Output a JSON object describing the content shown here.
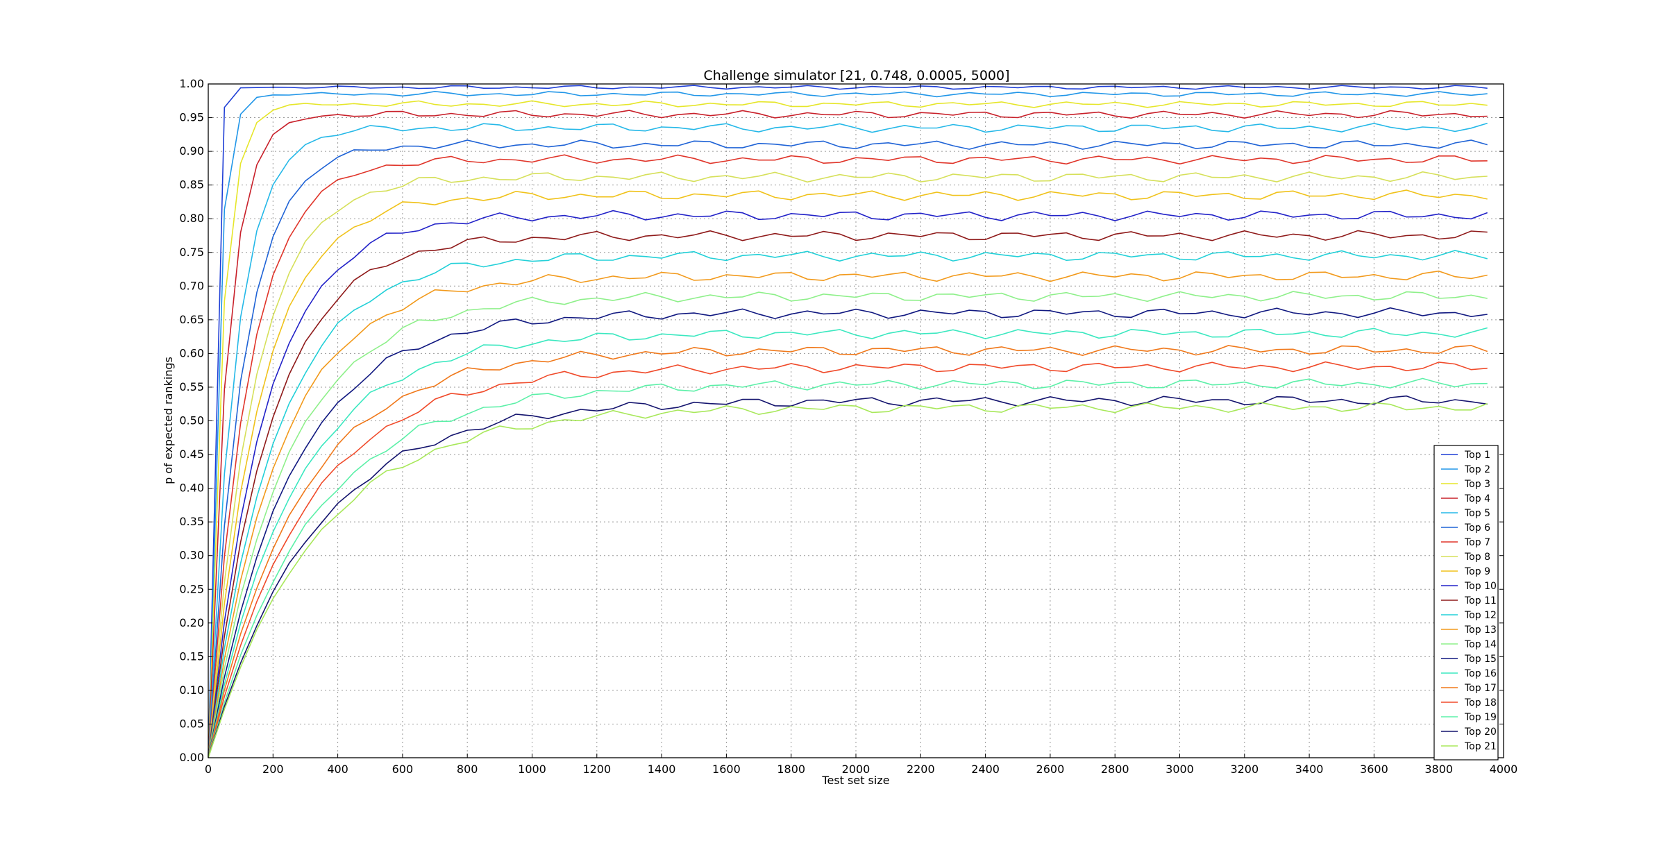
{
  "chart_data": {
    "type": "line",
    "title": "Challenge simulator [21, 0.748, 0.0005, 5000]",
    "xlabel": "Test set size",
    "ylabel": "p of expected rankings",
    "xlim": [
      0,
      4000
    ],
    "ylim": [
      0,
      1
    ],
    "x_ticks": [
      "0",
      "200",
      "400",
      "600",
      "800",
      "1000",
      "1200",
      "1400",
      "1600",
      "1800",
      "2000",
      "2200",
      "2400",
      "2600",
      "2800",
      "3000",
      "3200",
      "3400",
      "3600",
      "3800",
      "4000"
    ],
    "y_ticks": [
      "0.00",
      "0.05",
      "0.10",
      "0.15",
      "0.20",
      "0.25",
      "0.30",
      "0.35",
      "0.40",
      "0.45",
      "0.50",
      "0.55",
      "0.60",
      "0.65",
      "0.70",
      "0.75",
      "0.80",
      "0.85",
      "0.90",
      "0.95",
      "1.00"
    ],
    "grid": true,
    "legend_position": "lower-right",
    "x_start": 0,
    "x_step": 50,
    "x_count": 80,
    "series": [
      {
        "name": "Top 1",
        "color": "#1f3fd6",
        "plateau": 0.995,
        "k": 0.07,
        "noise": 0.003
      },
      {
        "name": "Top 2",
        "color": "#2196e8",
        "plateau": 0.985,
        "k": 0.035,
        "noise": 0.004
      },
      {
        "name": "Top 3",
        "color": "#e6e62a",
        "plateau": 0.97,
        "k": 0.024,
        "noise": 0.005
      },
      {
        "name": "Top 4",
        "color": "#c8202a",
        "plateau": 0.955,
        "k": 0.017,
        "noise": 0.006
      },
      {
        "name": "Top 5",
        "color": "#25b8e8",
        "plateau": 0.935,
        "k": 0.012,
        "noise": 0.007
      },
      {
        "name": "Top 6",
        "color": "#1f63d6",
        "plateau": 0.91,
        "k": 0.0095,
        "noise": 0.007
      },
      {
        "name": "Top 7",
        "color": "#e0352a",
        "plateau": 0.888,
        "k": 0.0082,
        "noise": 0.007
      },
      {
        "name": "Top 8",
        "color": "#d6e05a",
        "plateau": 0.862,
        "k": 0.0072,
        "noise": 0.008
      },
      {
        "name": "Top 9",
        "color": "#f0c21a",
        "plateau": 0.835,
        "k": 0.0064,
        "noise": 0.008
      },
      {
        "name": "Top 10",
        "color": "#2222c8",
        "plateau": 0.805,
        "k": 0.0058,
        "noise": 0.008
      },
      {
        "name": "Top 11",
        "color": "#8f1a1a",
        "plateau": 0.775,
        "k": 0.0053,
        "noise": 0.008
      },
      {
        "name": "Top 12",
        "color": "#22d0d8",
        "plateau": 0.745,
        "k": 0.0049,
        "noise": 0.008
      },
      {
        "name": "Top 13",
        "color": "#f29a1c",
        "plateau": 0.715,
        "k": 0.0046,
        "noise": 0.008
      },
      {
        "name": "Top 14",
        "color": "#8ef08a",
        "plateau": 0.685,
        "k": 0.0043,
        "noise": 0.008
      },
      {
        "name": "Top 15",
        "color": "#101880",
        "plateau": 0.66,
        "k": 0.004,
        "noise": 0.008
      },
      {
        "name": "Top 16",
        "color": "#3be8c0",
        "plateau": 0.63,
        "k": 0.0038,
        "noise": 0.008
      },
      {
        "name": "Top 17",
        "color": "#f0781a",
        "plateau": 0.605,
        "k": 0.0036,
        "noise": 0.008
      },
      {
        "name": "Top 18",
        "color": "#f04a2a",
        "plateau": 0.58,
        "k": 0.0034,
        "noise": 0.008
      },
      {
        "name": "Top 19",
        "color": "#5cf0a8",
        "plateau": 0.555,
        "k": 0.0032,
        "noise": 0.008
      },
      {
        "name": "Top 20",
        "color": "#14146e",
        "plateau": 0.53,
        "k": 0.0031,
        "noise": 0.008
      },
      {
        "name": "Top 21",
        "color": "#a8e85a",
        "plateau": 0.52,
        "k": 0.003,
        "noise": 0.008
      }
    ]
  }
}
